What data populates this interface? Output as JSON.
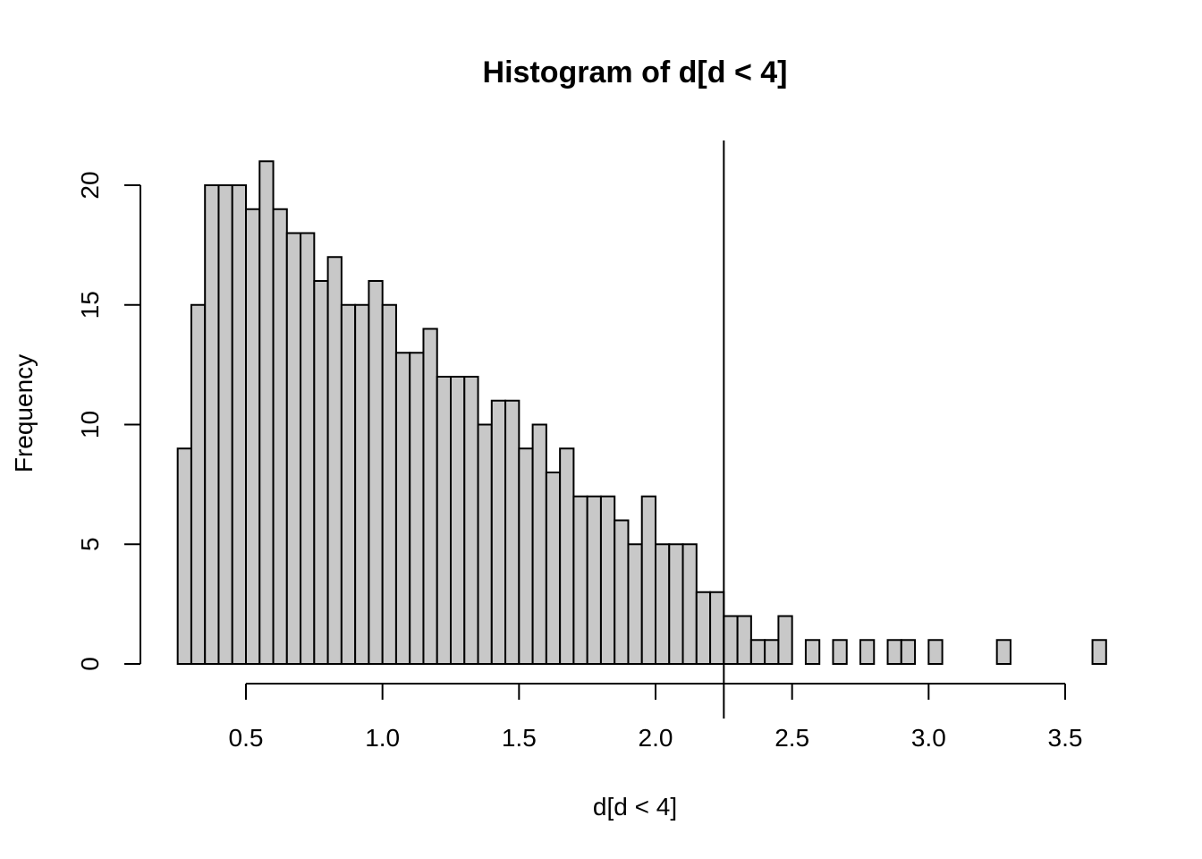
{
  "chart_data": {
    "type": "bar",
    "title": "Histogram of d[d < 4]",
    "xlabel": "d[d < 4]",
    "ylabel": "Frequency",
    "bin_width": 0.05,
    "bin_start": 0.25,
    "values": [
      9,
      15,
      20,
      20,
      20,
      19,
      21,
      19,
      18,
      18,
      16,
      17,
      15,
      15,
      16,
      15,
      13,
      13,
      14,
      12,
      12,
      12,
      10,
      11,
      11,
      9,
      10,
      8,
      9,
      7,
      7,
      7,
      6,
      5,
      7,
      5,
      5,
      5,
      3,
      3,
      2,
      2,
      1,
      1,
      2,
      0,
      1,
      0,
      1,
      0,
      1,
      0,
      1,
      1,
      0,
      1,
      0,
      0,
      0,
      0,
      1,
      0,
      0,
      0,
      0,
      0,
      0,
      1
    ],
    "xlim": [
      0.25,
      3.6
    ],
    "ylim": [
      0,
      21.5
    ],
    "x_ticks": [
      "0.5",
      "1.0",
      "1.5",
      "2.0",
      "2.5",
      "3.0",
      "3.5"
    ],
    "x_tick_values": [
      0.5,
      1.0,
      1.5,
      2.0,
      2.5,
      3.0,
      3.5
    ],
    "y_ticks": [
      "0",
      "5",
      "10",
      "15",
      "20"
    ],
    "y_tick_values": [
      0,
      5,
      10,
      15,
      20
    ],
    "vline_x": 2.25,
    "bar_fill": "#c8c8c8",
    "grid": false
  }
}
